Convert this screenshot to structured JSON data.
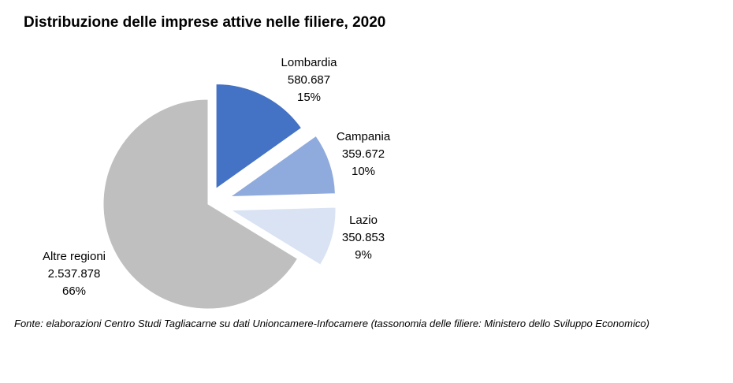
{
  "chart_data": {
    "type": "pie",
    "title": "Distribuzione delle imprese attive nelle filiere, 2020",
    "slices": [
      {
        "name": "Lombardia",
        "value": 580687,
        "value_label": "580.687",
        "percent_label": "15%",
        "color": "#4472c4"
      },
      {
        "name": "Campania",
        "value": 359672,
        "value_label": "359.672",
        "percent_label": "10%",
        "color": "#8faadc"
      },
      {
        "name": "Lazio",
        "value": 350853,
        "value_label": "350.853",
        "percent_label": "9%",
        "color": "#dae3f3"
      },
      {
        "name": "Altre regioni",
        "value": 2537878,
        "value_label": "2.537.878",
        "percent_label": "66%",
        "color": "#bfbfbf"
      }
    ]
  },
  "source_note": "Fonte: elaborazioni Centro Studi Tagliacarne su dati Unioncamere-Infocamere (tassonomia delle filiere: Ministero dello Sviluppo Economico)"
}
